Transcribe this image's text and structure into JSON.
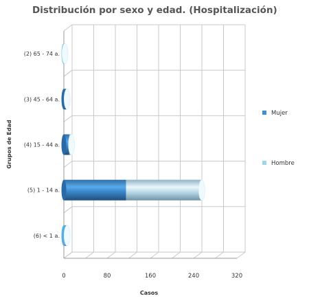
{
  "chart_data": {
    "type": "bar",
    "orientation": "horizontal",
    "stacked": true,
    "title": "Distribución por sexo y edad. (Hospitalización)",
    "xlabel": "Casos",
    "ylabel": "Grupos de Edad",
    "categories": [
      "(2) 65 - 74 a.",
      "(3) 45 - 64 a.",
      "(4) 15 - 44 a.",
      "(5) 1 - 14 a.",
      "(6) < 1 a."
    ],
    "series": [
      {
        "name": "Mujer",
        "values": [
          0,
          4,
          10,
          115,
          0
        ],
        "color": "#3a8fd6"
      },
      {
        "name": "Hombre",
        "values": [
          2,
          2,
          4,
          140,
          6
        ],
        "color": "#9fd4f0"
      }
    ],
    "x_ticks": [
      0,
      80,
      160,
      240,
      320
    ],
    "xlim": [
      0,
      320
    ],
    "grid": true,
    "legend_position": "right"
  }
}
